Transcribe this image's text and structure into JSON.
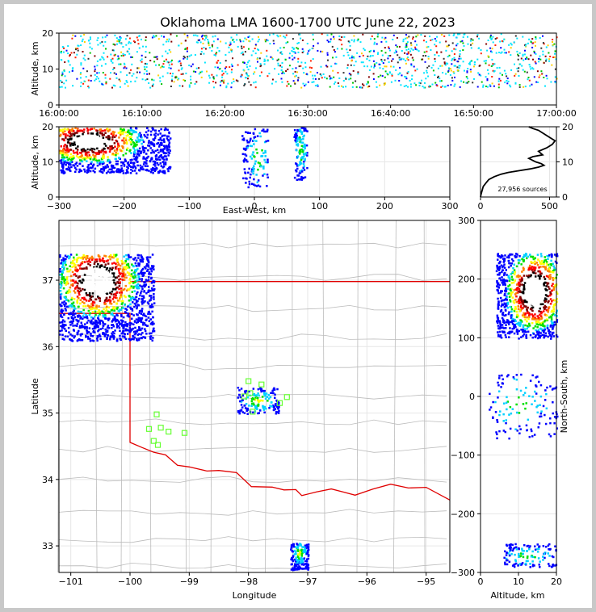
{
  "title": "Oklahoma LMA 1600-1700 UTC June 22, 2023",
  "colors": {
    "state_border": "#e00000",
    "county_lines": "#bbbbbb",
    "station_marker": "#66ff33",
    "density_scale": [
      "#0000ff",
      "#00d0ff",
      "#00e000",
      "#ffff00",
      "#ff8000",
      "#ff0000",
      "#800000",
      "#000000",
      "#ffffff"
    ]
  },
  "chart_data": [
    {
      "name": "time-height",
      "type": "scatter",
      "xlim": [
        "16:00:00",
        "17:00:00"
      ],
      "ylim": [
        0,
        20
      ],
      "ylabel": "Altitude, km",
      "xticks": [
        "16:00:00",
        "16:10:00",
        "16:20:00",
        "16:30:00",
        "16:40:00",
        "16:50:00",
        "17:00:00"
      ],
      "yticks": [
        "0",
        "10",
        "20"
      ],
      "altitude_band_km": [
        5,
        20
      ]
    },
    {
      "name": "east-west-height",
      "type": "heatmap",
      "xlim": [
        -300,
        300
      ],
      "ylim": [
        0,
        20
      ],
      "xlabel": "East-West, km",
      "ylabel": "Altitude, km",
      "xticks": [
        "−300",
        "−200",
        "−100",
        "0",
        "100",
        "200",
        "300"
      ],
      "yticks": [
        "0",
        "10",
        "20"
      ],
      "clusters": [
        {
          "x_range": [
            -300,
            -130
          ],
          "z_range": [
            7,
            20
          ],
          "peak_x": -255,
          "peak_z": 16
        },
        {
          "x_range": [
            -20,
            20
          ],
          "z_range": [
            3,
            20
          ],
          "peak_x": 5,
          "peak_z": 12
        },
        {
          "x_range": [
            60,
            80
          ],
          "z_range": [
            5,
            20
          ],
          "peak_x": 70,
          "peak_z": 14
        }
      ]
    },
    {
      "name": "altitude-histogram",
      "type": "line",
      "xlim": [
        0,
        550
      ],
      "ylim": [
        0,
        20
      ],
      "xticks": [
        "0",
        "500"
      ],
      "yticks": [
        "0",
        "10",
        "20"
      ],
      "annotation": "27,956 sources",
      "profile": [
        [
          0,
          0
        ],
        [
          5,
          1
        ],
        [
          20,
          3
        ],
        [
          40,
          4
        ],
        [
          60,
          5
        ],
        [
          100,
          5.8
        ],
        [
          150,
          6.5
        ],
        [
          200,
          7
        ],
        [
          280,
          7.5
        ],
        [
          360,
          8
        ],
        [
          420,
          8.5
        ],
        [
          460,
          9
        ],
        [
          440,
          9.5
        ],
        [
          400,
          10
        ],
        [
          350,
          11
        ],
        [
          380,
          11.5
        ],
        [
          450,
          12
        ],
        [
          420,
          13
        ],
        [
          480,
          14
        ],
        [
          520,
          15
        ],
        [
          540,
          16
        ],
        [
          500,
          17
        ],
        [
          460,
          18
        ],
        [
          420,
          19
        ],
        [
          380,
          19.5
        ],
        [
          350,
          20
        ]
      ]
    },
    {
      "name": "plan-view",
      "type": "heatmap",
      "xlim": [
        -101.2,
        -94.6
      ],
      "ylim": [
        32.6,
        37.9
      ],
      "xlabel": "Longitude",
      "ylabel": "Latitude",
      "xticks": [
        "−101",
        "−100",
        "−99",
        "−98",
        "−97",
        "−96",
        "−95"
      ],
      "yticks": [
        "33",
        "34",
        "35",
        "36",
        "37"
      ],
      "clusters": [
        {
          "lon_range": [
            -101.2,
            -99.6
          ],
          "lat_range": [
            36.1,
            37.4
          ],
          "peak_lon": -100.55,
          "peak_lat": 37.0
        },
        {
          "lon_range": [
            -98.2,
            -97.5
          ],
          "lat_range": [
            35.0,
            35.4
          ],
          "peak_lon": -97.85,
          "peak_lat": 35.2
        },
        {
          "lon_range": [
            -97.3,
            -97.0
          ],
          "lat_range": [
            32.65,
            33.05
          ],
          "peak_lon": -97.15,
          "peak_lat": 32.9
        }
      ],
      "stations": [
        [
          -98.0,
          35.48
        ],
        [
          -98.07,
          35.25
        ],
        [
          -97.97,
          35.3
        ],
        [
          -97.93,
          35.02
        ],
        [
          -97.78,
          35.43
        ],
        [
          -97.47,
          35.15
        ],
        [
          -97.35,
          35.24
        ],
        [
          -99.55,
          34.98
        ],
        [
          -99.68,
          34.76
        ],
        [
          -99.48,
          34.78
        ],
        [
          -99.6,
          34.58
        ],
        [
          -99.53,
          34.52
        ],
        [
          -99.35,
          34.72
        ],
        [
          -99.08,
          34.7
        ]
      ]
    },
    {
      "name": "north-south-height",
      "type": "heatmap",
      "xlim": [
        0,
        20
      ],
      "ylim": [
        -300,
        300
      ],
      "xlabel": "Altitude, km",
      "ylabel": "North-South, km",
      "xticks": [
        "0",
        "10",
        "20"
      ],
      "yticks": [
        "−300",
        "−200",
        "−100",
        "0",
        "100",
        "200",
        "300"
      ],
      "clusters": [
        {
          "z_range": [
            4,
            20
          ],
          "y_range": [
            100,
            245
          ],
          "peak_z": 14,
          "peak_y": 180
        },
        {
          "z_range": [
            2,
            20
          ],
          "y_range": [
            -70,
            40
          ],
          "peak_z": 10,
          "peak_y": -10
        },
        {
          "z_range": [
            6,
            20
          ],
          "y_range": [
            -290,
            -250
          ],
          "peak_z": 12,
          "peak_y": -270
        }
      ]
    }
  ]
}
